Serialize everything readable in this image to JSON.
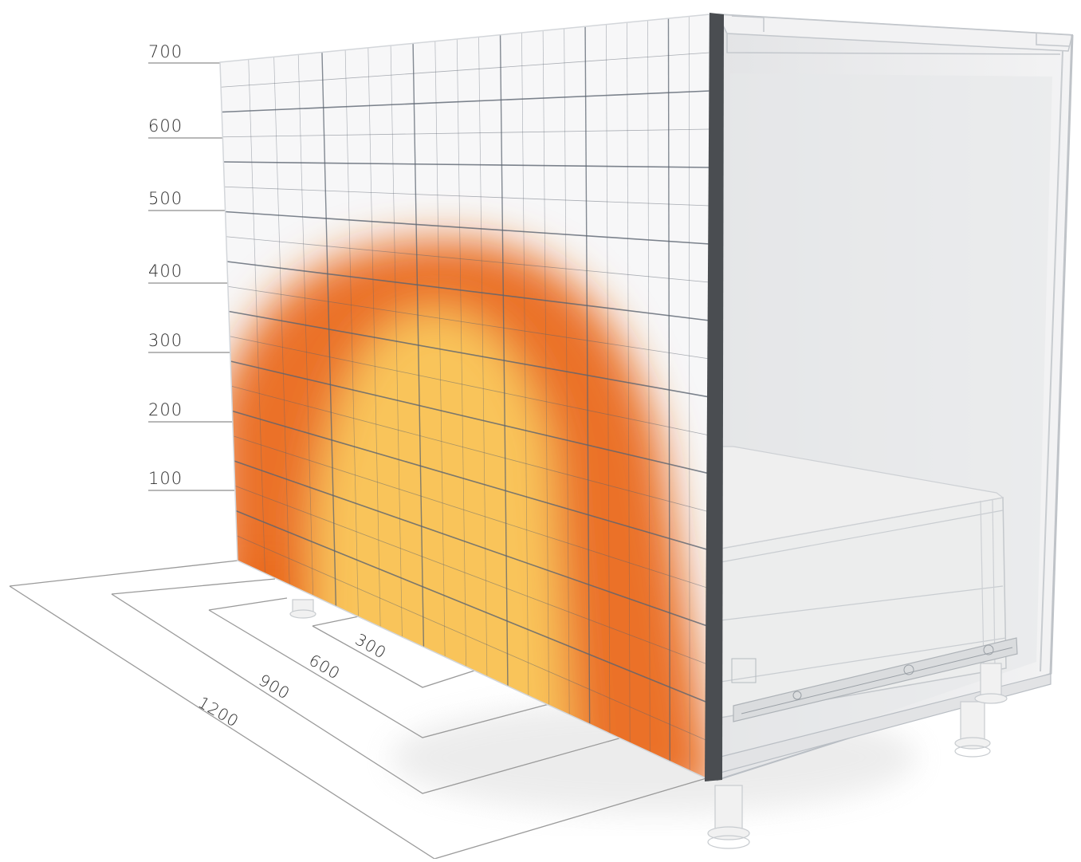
{
  "height_scale": {
    "labels": [
      "700",
      "600",
      "500",
      "400",
      "300",
      "200",
      "100"
    ]
  },
  "depth_scale": {
    "labels": [
      "300",
      "600",
      "900",
      "1200"
    ]
  },
  "colors": {
    "heat_outer": "#ea6a1f",
    "heat_inner": "#f9c45a",
    "grid_line": "#5b6470",
    "panel_edge": "#4a4d51",
    "cabinet_fill": "#ececec",
    "cabinet_edge": "#b9bec4",
    "scale_line": "#9a9a9a"
  },
  "icons": {
    "cabinet": "kitchen-base-cabinet-with-drawer",
    "feet": "adjustable-cabinet-foot"
  }
}
